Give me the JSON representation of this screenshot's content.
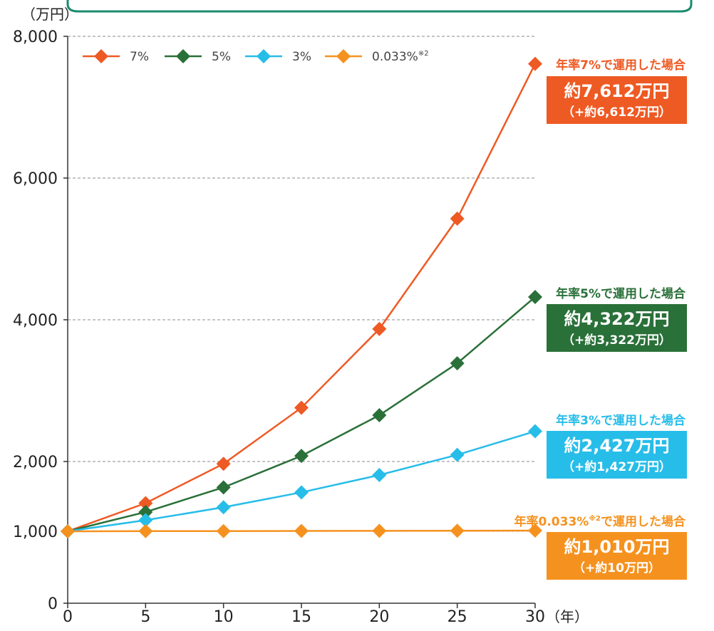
{
  "colors": {
    "s7": "#ee5a24",
    "s5": "#2a7039",
    "s3": "#27bde9",
    "s0": "#f5921f",
    "grid": "#888888",
    "frame": "#1b8a6d"
  },
  "chart_data": {
    "type": "line",
    "title": "",
    "xlabel": "",
    "ylabel": "",
    "x_unit": "（年）",
    "y_unit": "（万円）",
    "x": [
      0,
      5,
      10,
      15,
      20,
      25,
      30
    ],
    "x_ticks": [
      "0",
      "5",
      "10",
      "15",
      "20",
      "25",
      "30"
    ],
    "y_ticks": [
      {
        "value": 0,
        "label": "0"
      },
      {
        "value": 1000,
        "label": "1,000"
      },
      {
        "value": 2000,
        "label": "2,000"
      },
      {
        "value": 4000,
        "label": "4,000"
      },
      {
        "value": 6000,
        "label": "6,000"
      },
      {
        "value": 8000,
        "label": "8,000"
      }
    ],
    "ylim": [
      0,
      8000
    ],
    "xlim": [
      0,
      30
    ],
    "grid": "horizontal dashed",
    "legend_position": "top-left",
    "series": [
      {
        "name": "7%",
        "color_key": "s7",
        "values": [
          1000,
          1403,
          1967,
          2759,
          3870,
          5427,
          7612
        ]
      },
      {
        "name": "5%",
        "color_key": "s5",
        "values": [
          1000,
          1276,
          1629,
          2079,
          2653,
          3386,
          4322
        ]
      },
      {
        "name": "3%",
        "color_key": "s3",
        "values": [
          1000,
          1159,
          1344,
          1558,
          1806,
          2094,
          2427
        ]
      },
      {
        "name": "0.033%",
        "name_sup": "※2",
        "color_key": "s0",
        "values": [
          1000,
          1002,
          1003,
          1005,
          1007,
          1008,
          1010
        ]
      }
    ],
    "annotations": [
      {
        "color_key": "s7",
        "head": "年率7%で運用した場合",
        "main": "約7,612万円",
        "sub": "（+約6,612万円）"
      },
      {
        "color_key": "s5",
        "head": "年率5%で運用した場合",
        "main": "約4,322万円",
        "sub": "（+約3,322万円）"
      },
      {
        "color_key": "s3",
        "head": "年率3%で運用した場合",
        "main": "約2,427万円",
        "sub": "（+約1,427万円）"
      },
      {
        "color_key": "s0",
        "head": "年率0.033%",
        "head_sup": "※2",
        "head_tail": "で運用した場合",
        "main": "約1,010万円",
        "sub": "（+約10万円）"
      }
    ]
  }
}
